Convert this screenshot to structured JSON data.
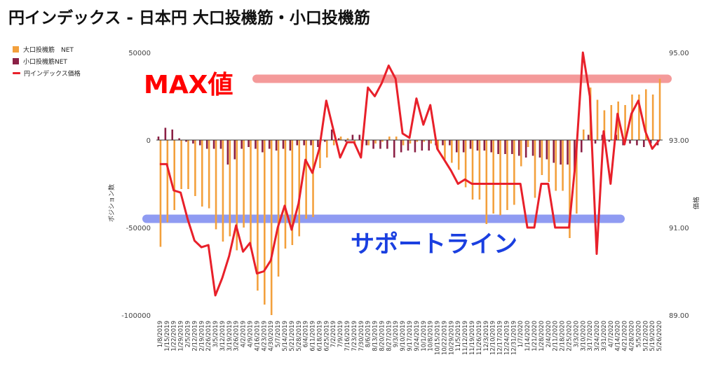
{
  "title": "円インデックス - 日本円 大口投機筋・小口投機筋",
  "legend": [
    {
      "label": "大口投機筋　NET",
      "color": "#f3a03c",
      "kind": "box"
    },
    {
      "label": "小口投機筋NET",
      "color": "#8b2045",
      "kind": "box"
    },
    {
      "label": "円インデックス価格",
      "color": "#e8202a",
      "kind": "line"
    }
  ],
  "annotations": {
    "max_label": "MAX値",
    "support_label": "サポートライン",
    "max_color": "#ff0000",
    "support_color": "#1a3fe0",
    "max_band_color": "#f49a9a",
    "support_band_color": "#8f9bf2"
  },
  "chart_data": {
    "type": "bar",
    "ylabel": "ポジション数",
    "y2label": "価格",
    "ylim": [
      -100000,
      50000
    ],
    "y2lim": [
      89,
      95
    ],
    "yticks": [
      "50000",
      "0",
      "-50000",
      "-100000"
    ],
    "y2ticks": [
      "95.00",
      "93.00",
      "91.00",
      "89.00"
    ],
    "grid": false,
    "legend_position": "top-left",
    "x": [
      "1/8/2019",
      "1/15/2019",
      "1/22/2019",
      "1/29/2019",
      "2/5/2019",
      "2/12/2019",
      "2/19/2019",
      "2/26/2019",
      "3/5/2019",
      "3/12/2019",
      "3/19/2019",
      "3/26/2019",
      "4/2/2019",
      "4/9/2019",
      "4/16/2019",
      "4/23/2019",
      "4/30/2019",
      "5/7/2019",
      "5/14/2019",
      "5/21/2019",
      "5/28/2019",
      "6/4/2019",
      "6/11/2019",
      "6/18/2019",
      "6/25/2019",
      "7/2/2019",
      "7/9/2019",
      "7/16/2019",
      "7/23/2019",
      "7/30/2019",
      "8/6/2019",
      "8/13/2019",
      "8/20/2019",
      "8/27/2019",
      "9/3/2019",
      "9/10/2019",
      "9/17/2019",
      "9/24/2019",
      "10/1/2019",
      "10/8/2019",
      "10/15/2019",
      "10/22/2019",
      "10/29/2019",
      "11/5/2019",
      "11/12/2019",
      "11/19/2019",
      "11/26/2019",
      "12/3/2019",
      "12/10/2019",
      "12/17/2019",
      "12/24/2019",
      "12/31/2019",
      "1/7/2020",
      "1/14/2020",
      "1/21/2020",
      "1/28/2020",
      "2/4/2020",
      "2/11/2020",
      "2/18/2020",
      "2/25/2020",
      "3/3/2020",
      "3/10/2020",
      "3/17/2020",
      "3/24/2020",
      "3/31/2020",
      "4/7/2020",
      "4/14/2020",
      "4/21/2020",
      "4/28/2020",
      "5/5/2020",
      "5/12/2020",
      "5/19/2020",
      "5/26/2020"
    ],
    "xtick_labels": [
      "1/8/2019",
      "1/15/2019",
      "1/22/2019",
      "1/29/2019",
      "2/5/2019",
      "2/12/2019",
      "2/19/2019",
      "2/26/2019",
      "3/5/2019",
      "3/12/2019",
      "3/19/2019",
      "3/26/2019",
      "4/2/2019",
      "4/9/2019",
      "4/16/2019",
      "4/23/2019",
      "4/30/2019",
      "5/7/2019",
      "5/14/2019",
      "5/21/2019",
      "5/28/2019",
      "6/4/2019",
      "6/11/2019",
      "6/18/2019",
      "6/25/2019",
      "7/2/2019",
      "7/9/2019",
      "7/16/2019",
      "7/23/2019",
      "7/30/2019",
      "8/6/2019",
      "8/13/2019",
      "8/20/2019",
      "8/27/2019",
      "9/3/2019",
      "9/10/2019",
      "9/17/2019",
      "9/24/2019",
      "10/1/2019",
      "10/8/2019",
      "10/15/2019",
      "10/22/2019",
      "10/29/2019",
      "11/5/2019",
      "11/12/2019",
      "11/19/2019",
      "11/26/2019",
      "12/3/2019",
      "12/10/2019",
      "12/17/2019",
      "12/24/2019",
      "12/31/2019",
      "1/7/2020",
      "1/14/2020",
      "1/21/2020",
      "1/28/2020",
      "2/4/2020",
      "2/11/2020",
      "2/18/2020",
      "2/25/2020",
      "3/3/2020",
      "3/10/2020",
      "3/17/2020",
      "3/24/2020",
      "3/31/2020",
      "4/7/2020",
      "4/14/2020",
      "4/21/2020",
      "4/28/2020",
      "5/5/2020",
      "5/12/2020",
      "5/19/2020",
      "5/26/2020"
    ],
    "series": [
      {
        "name": "大口投機筋　NET",
        "type": "bar",
        "axis": "left",
        "color": "#f3a03c",
        "values": [
          -61000,
          -47000,
          -40000,
          -28000,
          -28000,
          -32000,
          -38000,
          -39000,
          -51000,
          -58000,
          -55000,
          -63000,
          -50000,
          -62000,
          -86000,
          -94000,
          -100000,
          -78000,
          -62000,
          -60000,
          -55000,
          -45000,
          -44000,
          -16000,
          -10000,
          -3000,
          2000,
          1000,
          -2000,
          -5000,
          -3000,
          -2000,
          -1000,
          2000,
          2000,
          -3000,
          -2000,
          -1000,
          -1000,
          -2000,
          -6000,
          -11000,
          -13000,
          -17000,
          -27000,
          -34000,
          -34000,
          -48000,
          -42000,
          -43000,
          -40000,
          -37000,
          -15000,
          -4000,
          -33000,
          -20000,
          -24000,
          -29000,
          -29000,
          -56000,
          -42000,
          6000,
          30000,
          23000,
          17000,
          20000,
          22000,
          20000,
          26000,
          26000,
          29000,
          26000,
          35000
        ]
      },
      {
        "name": "小口投機筋NET",
        "type": "bar",
        "axis": "left",
        "color": "#8b2045",
        "values": [
          2000,
          7000,
          6000,
          1000,
          -1000,
          -2000,
          -3000,
          -5000,
          -5000,
          -5000,
          -14000,
          -11000,
          -5000,
          -4000,
          -5000,
          -7000,
          -5000,
          -6000,
          -5000,
          -6000,
          -3000,
          -3000,
          -3000,
          -4000,
          -1000,
          6000,
          1000,
          -1000,
          3000,
          3000,
          -3000,
          -5000,
          -5000,
          -5000,
          -10000,
          -7000,
          -6000,
          -7000,
          -6000,
          -6000,
          -3000,
          -3000,
          -3000,
          -7000,
          -7000,
          -5000,
          -6000,
          -6000,
          -7000,
          -8000,
          -8000,
          -8000,
          -9000,
          -10000,
          -9000,
          -10000,
          -11000,
          -13000,
          -14000,
          -14000,
          -18000,
          -7000,
          3000,
          -2000,
          3000,
          -1000,
          3000,
          -3000,
          -2000,
          -3000,
          -4000,
          -2000,
          -3000
        ]
      },
      {
        "name": "円インデックス価格",
        "type": "line",
        "axis": "right",
        "color": "#e8202a",
        "values": [
          92.45,
          92.45,
          91.85,
          91.8,
          91.2,
          90.7,
          90.55,
          90.6,
          89.45,
          89.85,
          90.35,
          91.05,
          90.45,
          90.65,
          89.95,
          90.0,
          90.25,
          91.0,
          91.5,
          90.95,
          91.55,
          92.55,
          92.25,
          92.8,
          93.9,
          93.25,
          92.6,
          92.95,
          92.95,
          92.6,
          94.2,
          94.0,
          94.3,
          94.7,
          94.4,
          93.15,
          93.05,
          93.95,
          93.35,
          93.8,
          92.8,
          92.55,
          92.3,
          92.0,
          92.1,
          92.0,
          92.0,
          92.0,
          92.0,
          92.0,
          92.0,
          92.0,
          92.0,
          91.0,
          91.0,
          92.0,
          92.0,
          91.0,
          91.0,
          91.0,
          92.6,
          95.0,
          94.0,
          90.4,
          93.2,
          92.0,
          93.6,
          92.9,
          93.6,
          93.9,
          93.2,
          92.8,
          93.0
        ]
      }
    ]
  }
}
